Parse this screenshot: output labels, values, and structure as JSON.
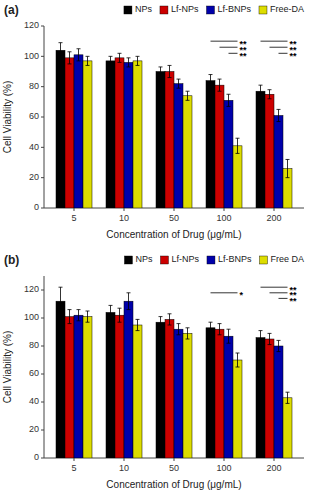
{
  "chart_data": [
    {
      "type": "bar",
      "title": "(a)",
      "categories": [
        "5",
        "10",
        "50",
        "100",
        "200"
      ],
      "series": [
        {
          "name": "NPs",
          "color": "#000000",
          "values": [
            104,
            97,
            90,
            84,
            77
          ],
          "errors": [
            5,
            3,
            3,
            4,
            4
          ]
        },
        {
          "name": "Lf-NPs",
          "color": "#cc0000",
          "values": [
            99,
            99,
            90,
            81,
            75
          ],
          "errors": [
            4,
            3,
            4,
            4,
            3
          ]
        },
        {
          "name": "Lf-BNPs",
          "color": "#0000aa",
          "values": [
            101,
            96,
            82,
            71,
            61
          ],
          "errors": [
            4,
            3,
            3,
            4,
            4
          ]
        },
        {
          "name": "Free-DA",
          "color": "#dddd00",
          "values": [
            97,
            97,
            74,
            41,
            26
          ],
          "errors": [
            3,
            3,
            3,
            5,
            6
          ]
        }
      ],
      "annotations": [
        {
          "text": "**",
          "y": 110,
          "category": "100",
          "from": "NPs",
          "to": "Free-DA"
        },
        {
          "text": "**",
          "y": 106,
          "category": "100",
          "from": "Lf-NPs",
          "to": "Free-DA"
        },
        {
          "text": "**",
          "y": 102,
          "category": "100",
          "from": "Lf-BNPs",
          "to": "Free-DA"
        },
        {
          "text": "**",
          "y": 110,
          "category": "200",
          "from": "NPs",
          "to": "Free-DA"
        },
        {
          "text": "**",
          "y": 106,
          "category": "200",
          "from": "Lf-NPs",
          "to": "Free-DA"
        },
        {
          "text": "**",
          "y": 102,
          "category": "200",
          "from": "Lf-BNPs",
          "to": "Free-DA"
        }
      ],
      "ylabel": "Cell Viability (%)",
      "xlabel": "Concentration of Drug (μg/mL)",
      "ylim": [
        0,
        120
      ],
      "yticks": [
        0,
        20,
        40,
        60,
        80,
        100,
        120
      ],
      "grid": false,
      "legend": "upper right"
    },
    {
      "type": "bar",
      "title": "(b)",
      "categories": [
        "5",
        "10",
        "50",
        "100",
        "200"
      ],
      "series": [
        {
          "name": "NPs",
          "color": "#000000",
          "values": [
            112,
            104,
            97,
            93,
            86
          ],
          "errors": [
            10,
            5,
            4,
            4,
            5
          ]
        },
        {
          "name": "Lf-NPs",
          "color": "#cc0000",
          "values": [
            101,
            102,
            99,
            92,
            85
          ],
          "errors": [
            5,
            5,
            4,
            4,
            4
          ]
        },
        {
          "name": "Lf-BNPs",
          "color": "#0000aa",
          "values": [
            102,
            112,
            92,
            87,
            80
          ],
          "errors": [
            4,
            6,
            4,
            5,
            4
          ]
        },
        {
          "name": "Free DA",
          "color": "#dddd00",
          "values": [
            101,
            95,
            89,
            70,
            43
          ],
          "errors": [
            4,
            4,
            4,
            5,
            4
          ]
        }
      ],
      "annotations": [
        {
          "text": "*",
          "y": 118,
          "category": "100",
          "from": "NPs",
          "to": "Free DA"
        },
        {
          "text": "**",
          "y": 122,
          "category": "200",
          "from": "NPs",
          "to": "Free DA"
        },
        {
          "text": "**",
          "y": 118,
          "category": "200",
          "from": "Lf-NPs",
          "to": "Free DA"
        },
        {
          "text": "**",
          "y": 114,
          "category": "200",
          "from": "Lf-BNPs",
          "to": "Free DA"
        }
      ],
      "ylabel": "Cell Viability (%)",
      "xlabel": "Concentration of Drug (μg/mL)",
      "ylim": [
        0,
        130
      ],
      "yticks": [
        0,
        20,
        40,
        60,
        80,
        100,
        120
      ],
      "grid": false,
      "legend": "upper right"
    }
  ]
}
